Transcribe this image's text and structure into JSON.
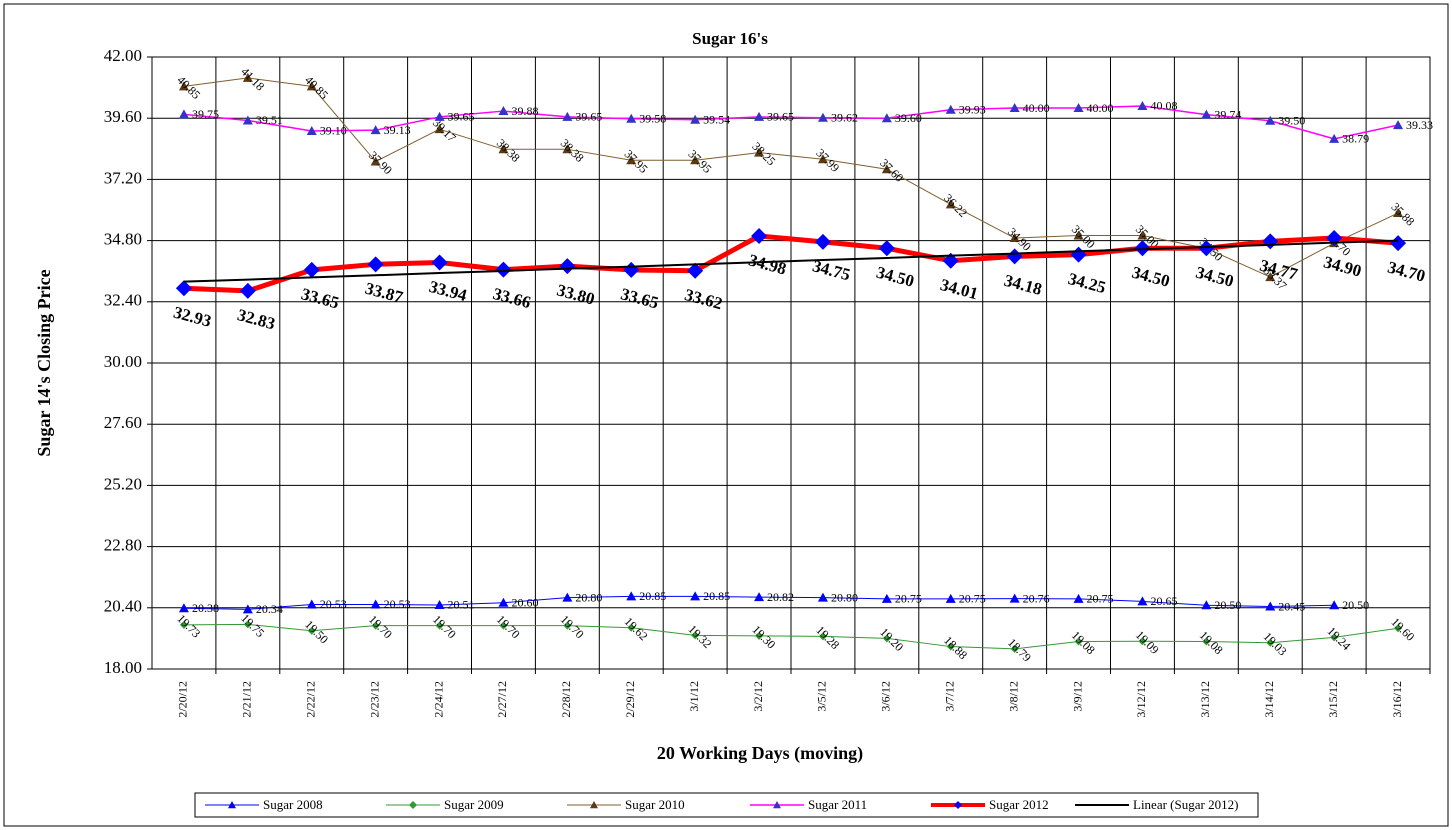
{
  "chart_data": {
    "type": "line",
    "title": "Sugar 16's",
    "y_label": "Sugar 14's Closing Price",
    "x_label": "20 Working Days (moving)",
    "categories": [
      "2/20/12",
      "2/21/12",
      "2/22/12",
      "2/23/12",
      "2/24/12",
      "2/27/12",
      "2/28/12",
      "2/29/12",
      "3/1/12",
      "3/2/12",
      "3/5/12",
      "3/6/12",
      "3/7/12",
      "3/8/12",
      "3/9/12",
      "3/12/12",
      "3/13/12",
      "3/14/12",
      "3/15/12",
      "3/16/12"
    ],
    "ylim": [
      18,
      42
    ],
    "yticks": [
      {
        "value": 18,
        "label": "18.00"
      },
      {
        "value": 20.4,
        "label": "20.40"
      },
      {
        "value": 22.8,
        "label": "22.80"
      },
      {
        "value": 25.2,
        "label": "25.20"
      },
      {
        "value": 27.6,
        "label": "27.60"
      },
      {
        "value": 30,
        "label": "30.00"
      },
      {
        "value": 32.4,
        "label": "32.40"
      },
      {
        "value": 34.8,
        "label": "34.80"
      },
      {
        "value": 37.2,
        "label": "37.20"
      },
      {
        "value": 39.6,
        "label": "39.60"
      },
      {
        "value": 42,
        "label": "42.00"
      }
    ],
    "grid": true,
    "legend": "bottom",
    "series": [
      {
        "name": "Sugar 2008",
        "color": "#0000ff",
        "marker": "triangle",
        "marker_color": "#0000ff",
        "values": [
          20.38,
          20.34,
          20.53,
          20.53,
          20.51,
          20.6,
          20.8,
          20.85,
          20.85,
          20.82,
          20.8,
          20.75,
          20.75,
          20.76,
          20.75,
          20.65,
          20.5,
          20.45,
          20.5,
          null
        ],
        "value_labels": [
          "20.38",
          "20.34",
          "20.53",
          "20.53",
          "20.51",
          "20.60",
          "20.80",
          "20.85",
          "20.85",
          "20.82",
          "20.80",
          "20.75",
          "20.75",
          "20.76",
          "20.75",
          "20.65",
          "20.50",
          "20.45",
          "20.50",
          null
        ]
      },
      {
        "name": "Sugar 2009",
        "color": "#339933",
        "marker": "diamond",
        "marker_color": "#339933",
        "values": [
          19.73,
          19.75,
          19.5,
          19.7,
          19.7,
          19.7,
          19.7,
          19.62,
          19.32,
          19.3,
          19.28,
          19.2,
          18.88,
          18.79,
          19.08,
          19.09,
          19.08,
          19.03,
          19.24,
          19.6
        ],
        "value_labels": [
          "19.73",
          "19.75",
          "19.50",
          "19.70",
          "19.70",
          "19.70",
          "19.70",
          "19.62",
          "19.32",
          "19.30",
          "19.28",
          "19.20",
          "18.88",
          "18.79",
          "19.08",
          "19.09",
          "19.08",
          "19.03",
          "19.24",
          "19.60"
        ]
      },
      {
        "name": "Sugar 2010",
        "color": "#7f5f2f",
        "marker": "triangle",
        "marker_color": "#5a3a10",
        "values": [
          40.85,
          41.18,
          40.85,
          37.9,
          39.17,
          38.38,
          38.38,
          37.95,
          37.95,
          38.25,
          37.99,
          37.6,
          36.22,
          34.9,
          35.0,
          35.0,
          34.5,
          33.37,
          34.7,
          35.88
        ],
        "value_labels": [
          "40.85",
          "41.18",
          "40.85",
          "37.90",
          "39.17",
          "38.38",
          "38.38",
          "37.95",
          "37.95",
          "38.25",
          "37.99",
          "37.60",
          "36.22",
          "34.90",
          "35.00",
          "35.00",
          "34.50",
          "33.37",
          "34.70",
          "35.88"
        ]
      },
      {
        "name": "Sugar 2011",
        "color": "#ff00ff",
        "marker": "triangle",
        "marker_color": "#3333cc",
        "values": [
          39.75,
          39.51,
          39.1,
          39.13,
          39.65,
          39.88,
          39.65,
          39.58,
          39.54,
          39.65,
          39.62,
          39.6,
          39.93,
          40.0,
          40.0,
          40.08,
          39.74,
          39.5,
          38.79,
          39.33
        ],
        "value_labels": [
          "39.75",
          "39.51",
          "39.10",
          "39.13",
          "39.65",
          "39.88",
          "39.65",
          "39.58",
          "39.54",
          "39.65",
          "39.62",
          "39.60",
          "39.93",
          "40.00",
          "40.00",
          "40.08",
          "39.74",
          "39.50",
          "38.79",
          "39.33"
        ]
      },
      {
        "name": "Sugar 2012",
        "color": "#ff0000",
        "marker": "diamond",
        "marker_color": "#0000ff",
        "values": [
          32.93,
          32.83,
          33.65,
          33.87,
          33.94,
          33.66,
          33.8,
          33.65,
          33.62,
          34.98,
          34.75,
          34.5,
          34.01,
          34.18,
          34.25,
          34.5,
          34.5,
          34.77,
          34.9,
          34.7
        ],
        "value_labels": [
          "32.93",
          "32.83",
          "33.65",
          "33.87",
          "33.94",
          "33.66",
          "33.80",
          "33.65",
          "33.62",
          "34.98",
          "34.75",
          "34.50",
          "34.01",
          "34.18",
          "34.25",
          "34.50",
          "34.50",
          "34.77",
          "34.90",
          "34.70"
        ]
      },
      {
        "name": "Linear (Sugar 2012)",
        "color": "#000000",
        "values": [
          33.19,
          33.27,
          33.36,
          33.44,
          33.53,
          33.61,
          33.7,
          33.78,
          33.87,
          33.95,
          34.04,
          34.12,
          34.21,
          34.29,
          34.38,
          34.46,
          34.55,
          34.63,
          34.72,
          34.8
        ]
      }
    ]
  }
}
